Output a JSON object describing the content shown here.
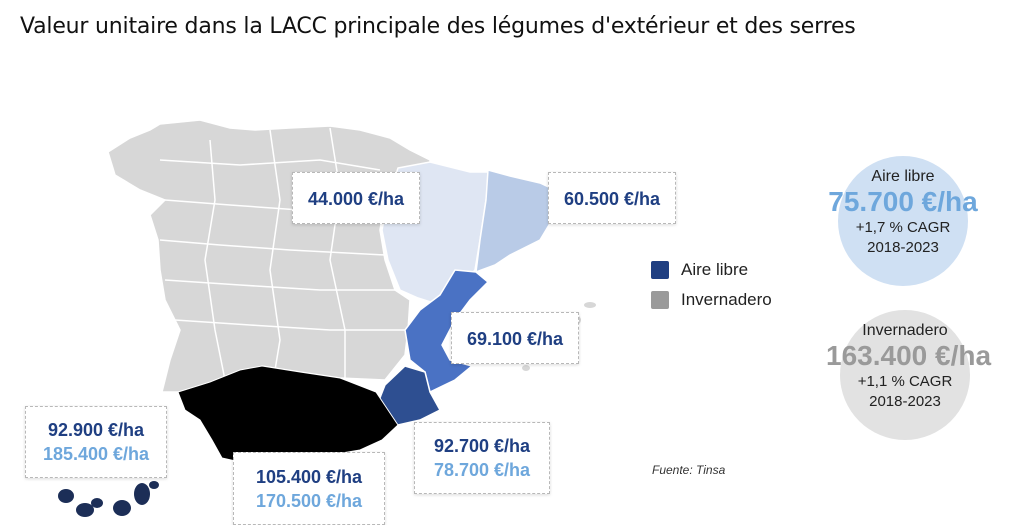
{
  "title": "Valeur unitaire dans la LACC principale des légumes d'extérieur et des serres",
  "labels": {
    "aragon": "44.000 €/ha",
    "cataluna": "60.500 €/ha",
    "valencia": "69.100 €/ha",
    "murcia_open": "92.700 €/ha",
    "murcia_green": "78.700 €/ha",
    "andalucia_open": "105.400 €/ha",
    "andalucia_green": "170.500 €/ha",
    "canarias_open": "92.900 €/ha",
    "canarias_green": "185.400 €/ha"
  },
  "legend": {
    "open_air": "Aire libre",
    "greenhouse": "Invernadero"
  },
  "summary": {
    "open_air": {
      "heading": "Aire libre",
      "value": "75.700 €/ha",
      "cagr": "+1,7 % CAGR",
      "period": "2018-2023"
    },
    "greenhouse": {
      "heading": "Invernadero",
      "value": "163.400 €/ha",
      "cagr": "+1,1 % CAGR",
      "period": "2018-2023"
    }
  },
  "source": "Fuente: Tinsa",
  "colors": {
    "base_region": "#d7d7d7",
    "aragon": "#dfe6f3",
    "cataluna": "#b9cbe7",
    "valencia": "#4a72c4",
    "murcia": "#2e4f91",
    "andalucia": "#000000",
    "canarias": "#1c2e57",
    "legend_open_air": "#1f3f82",
    "legend_greenhouse": "#9a9a9a",
    "value_dark": "#1f3f82",
    "value_light": "#6ea7dc",
    "circle_open_air": "#cfe0f3",
    "circle_greenhouse": "#e2e2e2"
  }
}
